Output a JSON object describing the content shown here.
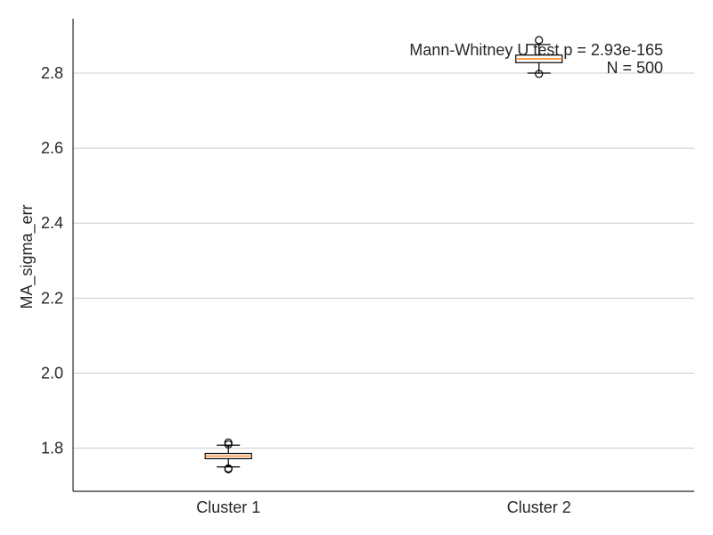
{
  "chart_data": {
    "type": "box",
    "title": "",
    "xlabel": "",
    "ylabel": "MA_sigma_err",
    "categories": [
      "Cluster 1",
      "Cluster 2"
    ],
    "ylim": [
      1.685,
      2.945
    ],
    "yticks": [
      "1.8",
      "2.0",
      "2.2",
      "2.4",
      "2.6",
      "2.8"
    ],
    "grid": "horizontal",
    "annotation": [
      "Mann-Whitney U test p = 2.93e-165",
      "N = 500"
    ],
    "boxes": [
      {
        "category": "Cluster 1",
        "whislo": 1.75,
        "q1": 1.772,
        "median": 1.779,
        "q3": 1.786,
        "whishi": 1.808,
        "fliers": [
          1.744,
          1.746,
          1.81,
          1.815
        ]
      },
      {
        "category": "Cluster 2",
        "whislo": 2.8,
        "q1": 2.828,
        "median": 2.838,
        "q3": 2.848,
        "whishi": 2.876,
        "fliers": [
          2.798,
          2.888
        ]
      }
    ],
    "colors": {
      "box_edge": "#000000",
      "median": "#ff7f0e",
      "grid": "#cccccc",
      "axis": "#262626",
      "background": "#ffffff"
    }
  }
}
